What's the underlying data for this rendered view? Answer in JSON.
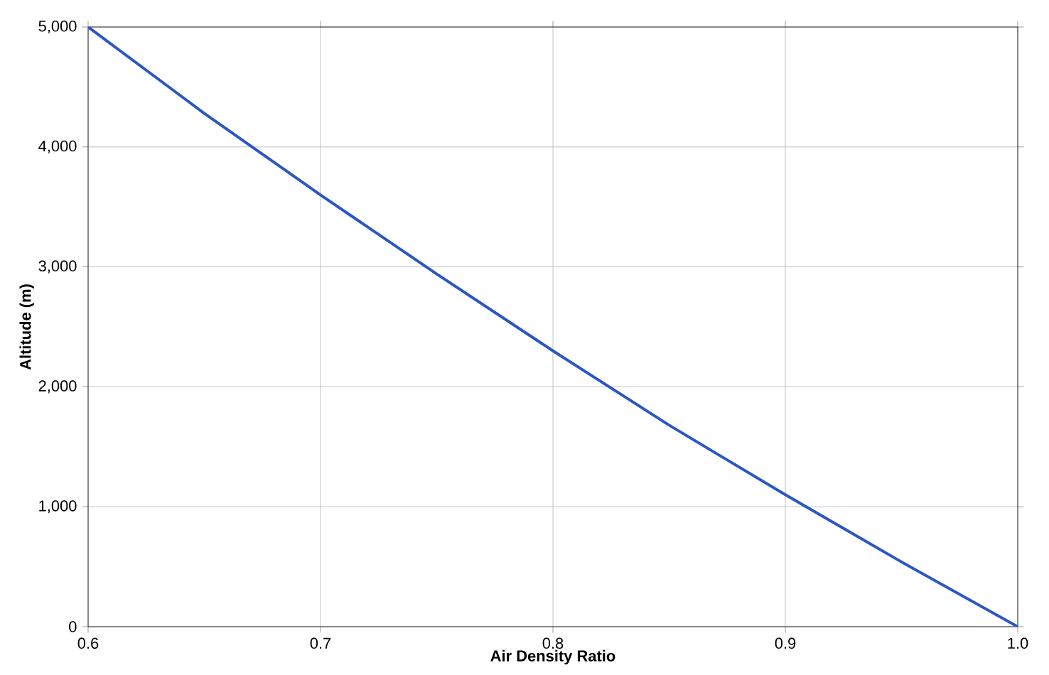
{
  "chart_data": {
    "type": "line",
    "xlabel": "Air Density Ratio",
    "ylabel": "Altitude (m)",
    "x": [
      0.6,
      0.65,
      0.7,
      0.75,
      0.8,
      0.85,
      0.9,
      0.95,
      1.0
    ],
    "series": [
      {
        "color": "#2a56c6",
        "values": [
          5000,
          4280,
          3600,
          2940,
          2300,
          1680,
          1100,
          540,
          0
        ]
      }
    ],
    "xlim": [
      0.6,
      1.0
    ],
    "xticks": [
      0.6,
      0.7,
      0.8,
      0.9,
      {
        "value": 1.0,
        "label": "1.0"
      }
    ],
    "ylim": [
      0,
      5000
    ],
    "yticks": [
      0,
      {
        "value": 1000,
        "label": "1,000"
      },
      {
        "value": 2000,
        "label": "2,000"
      },
      {
        "value": 3000,
        "label": "3,000"
      },
      {
        "value": 4000,
        "label": "4,000"
      },
      {
        "value": 5000,
        "label": "5,000"
      }
    ],
    "grid": true,
    "marker": "none",
    "line_style": "solid"
  }
}
